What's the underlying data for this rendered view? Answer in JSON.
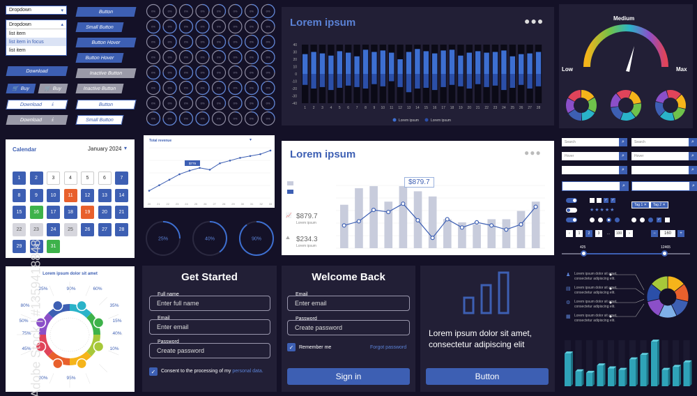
{
  "colors": {
    "accent": "#3d5fb3",
    "bg": "#141127",
    "panel": "#221f36",
    "orange": "#e8602c",
    "green": "#3db24a"
  },
  "dropdown": {
    "label1": "Dropdown",
    "label2": "Dropdown",
    "items": [
      "list item",
      "list item in focus",
      "list item"
    ]
  },
  "buttons": {
    "download": "Download",
    "buy": "Buy",
    "button": "Button",
    "small_button": "Small Button",
    "button_hover": "Button Hover",
    "inactive_button": "Inactive Button"
  },
  "calendar": {
    "title": "Calendar",
    "month": "January 2024",
    "days": [
      "1",
      "2",
      "3",
      "4",
      "5",
      "6",
      "7",
      "8",
      "9",
      "10",
      "11",
      "12",
      "13",
      "14",
      "15",
      "16",
      "17",
      "18",
      "19",
      "20",
      "21",
      "22",
      "23",
      "24",
      "25",
      "26",
      "27",
      "28",
      "29",
      "30",
      "31"
    ]
  },
  "circle_grid": {
    "cols": 8,
    "rows": 8,
    "label": "0%"
  },
  "total_revenue": {
    "title": "Total revenue",
    "badge": "$779",
    "values": [
      8,
      14,
      20,
      26,
      30,
      33,
      31,
      38,
      41,
      44,
      46,
      48,
      52
    ],
    "x_ticks": [
      "20",
      "21",
      "22",
      "23",
      "24",
      "25",
      "26",
      "27",
      "28",
      "29",
      "30",
      "31",
      "32",
      "33"
    ]
  },
  "progress_circles": [
    {
      "value": 25,
      "label": "25%"
    },
    {
      "value": 40,
      "label": "40%"
    },
    {
      "value": 90,
      "label": "90%"
    }
  ],
  "dark_chart": {
    "title": "Lorem ipsum",
    "dots_icon": "more-icon",
    "y_ticks": [
      "40",
      "30",
      "20",
      "10",
      "0",
      "-10",
      "-20",
      "-30",
      "-40"
    ],
    "x_ticks": [
      "1",
      "2",
      "3",
      "4",
      "5",
      "6",
      "7",
      "8",
      "9",
      "10",
      "11",
      "12",
      "13",
      "14",
      "15",
      "16",
      "17",
      "18",
      "19",
      "20",
      "21",
      "22",
      "23",
      "24",
      "25",
      "26",
      "27",
      "28"
    ],
    "pos": [
      27,
      30,
      28,
      25,
      31,
      29,
      24,
      33,
      30,
      32,
      29,
      20,
      30,
      34,
      31,
      28,
      32,
      33,
      25,
      29,
      31,
      29,
      30,
      32,
      24,
      27,
      28,
      30
    ],
    "neg": [
      -15,
      -20,
      -18,
      -22,
      -19,
      -16,
      -18,
      -20,
      -14,
      -17,
      -10,
      -18,
      -25,
      -20,
      -19,
      -22,
      -18,
      -15,
      -17,
      -20,
      -14,
      -18,
      -16,
      -22,
      -19,
      -15,
      -20,
      -17
    ],
    "legend": [
      "Lorem ipsum",
      "Lorem ipsum"
    ]
  },
  "gauge": {
    "medium": "Medium",
    "low": "Low",
    "max": "Max"
  },
  "light_chart": {
    "title": "Lorem ipsum",
    "badge": "$879.7",
    "stat1_value": "$879.7",
    "stat1_label": "Lorem ipsum",
    "stat2_value": "$234.3",
    "stat2_label": "Lorem ipsum",
    "bars": [
      42,
      58,
      60,
      45,
      60,
      55,
      50,
      28,
      25,
      23,
      28,
      28,
      36,
      45
    ],
    "line": [
      22,
      26,
      37,
      35,
      43,
      27,
      10,
      28,
      20,
      25,
      22,
      18,
      23,
      40
    ]
  },
  "controls": {
    "search": "Search",
    "hover": "Hover",
    "tags": [
      "Tag 1",
      "Tag 2"
    ],
    "pager": [
      "1",
      "2",
      "3",
      "...",
      "100"
    ],
    "stepper_value": "160",
    "slider_min": "425",
    "slider_max": "12465"
  },
  "ring_chart": {
    "title": "Lorem ipsum dolor sit amet",
    "labels": [
      "25%",
      "90%",
      "60%",
      "80%",
      "35%",
      "50%",
      "15%",
      "75%",
      "40%",
      "45%",
      "10%",
      "20%",
      "95%"
    ]
  },
  "get_started": {
    "title": "Get Started",
    "name_label": "Full name",
    "name_placeholder": "Enter full name",
    "email_label": "Email",
    "email_placeholder": "Enter email",
    "password_label": "Password",
    "password_placeholder": "Create password",
    "consent": "Consent to the processing of my",
    "consent_link": "personal data."
  },
  "welcome_back": {
    "title": "Welcome Back",
    "email_label": "Email",
    "email_placeholder": "Enter email",
    "password_label": "Password",
    "password_placeholder": "Create password",
    "remember": "Remember me",
    "forgot": "Forgot password",
    "signin": "Sign in"
  },
  "promo": {
    "text": "Lorem ipsum dolor sit amet, consectetur adipiscing elit",
    "button": "Button",
    "icon": "bar-chart-icon"
  },
  "info_list": {
    "items": [
      "Lorem ipsum dolor sit amet,",
      "consectetur adipiscing elit.",
      "Lorem ipsum dolor sit amet,",
      "consectetur adipiscing elit."
    ]
  },
  "bar3d": {
    "values": [
      44,
      20,
      18,
      28,
      24,
      22,
      36,
      42,
      60,
      22,
      26,
      32
    ]
  },
  "watermark": "Adobe Stock | #1359418848"
}
